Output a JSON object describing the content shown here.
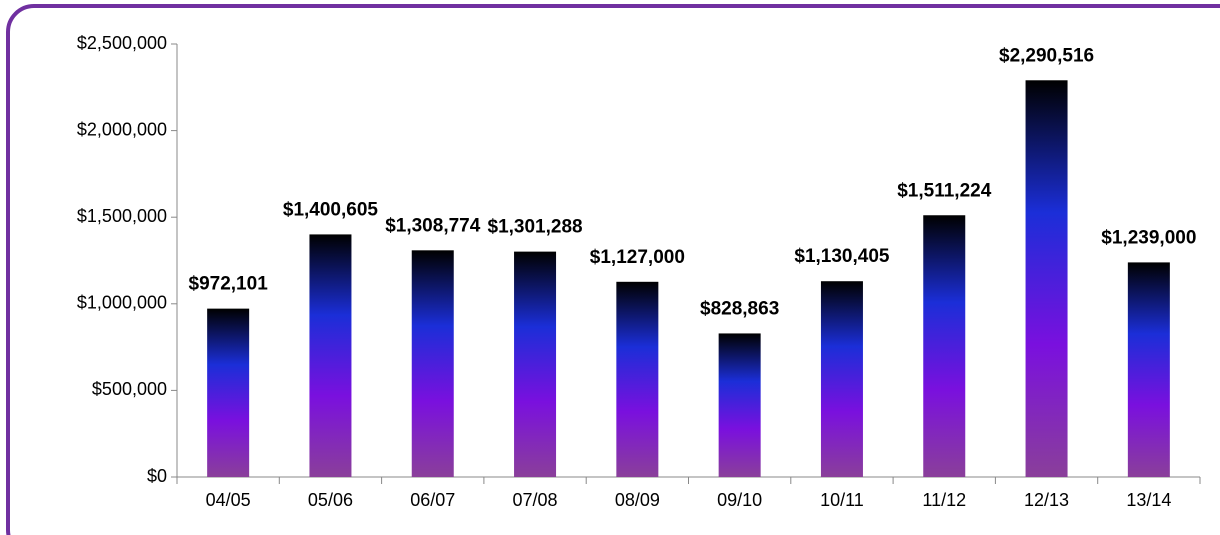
{
  "chart_data": {
    "type": "bar",
    "categories": [
      "04/05",
      "05/06",
      "06/07",
      "07/08",
      "08/09",
      "09/10",
      "10/11",
      "11/12",
      "12/13",
      "13/14"
    ],
    "values": [
      972101,
      1400605,
      1308774,
      1301288,
      1127000,
      828863,
      1130405,
      1511224,
      2290516,
      1239000
    ],
    "value_labels": [
      "$972,101",
      "$1,400,605",
      "$1,308,774",
      "$1,301,288",
      "$1,127,000",
      "$828,863",
      "$1,130,405",
      "$1,511,224",
      "$2,290,516",
      "$1,239,000"
    ],
    "gradient": [
      "#000000",
      "#1b2ed8",
      "#7a10de",
      "#8a3f9a"
    ],
    "ylim": [
      0,
      2500000
    ],
    "yticks": [
      {
        "value": 0,
        "label": "$0"
      },
      {
        "value": 500000,
        "label": "$500,000"
      },
      {
        "value": 1000000,
        "label": "$1,000,000"
      },
      {
        "value": 1500000,
        "label": "$1,500,000"
      },
      {
        "value": 2000000,
        "label": "$2,000,000"
      },
      {
        "value": 2500000,
        "label": "$2,500,000"
      }
    ],
    "grid": false
  }
}
